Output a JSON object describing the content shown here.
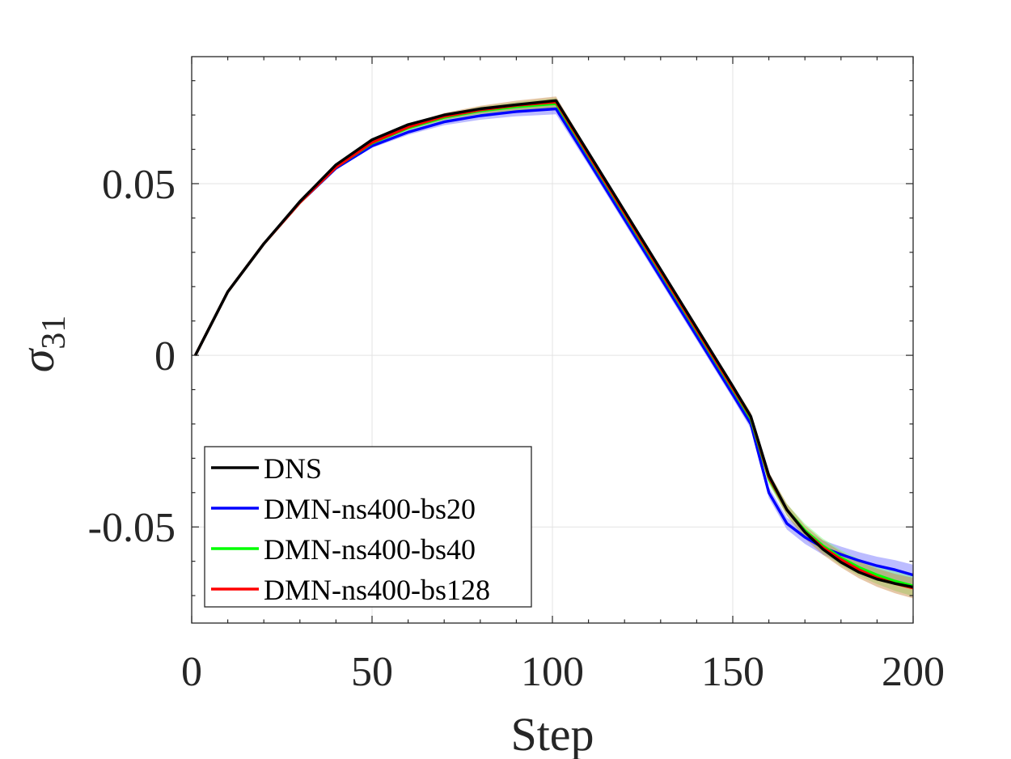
{
  "chart_data": {
    "type": "line",
    "xlabel": "Step",
    "ylabel": "σ",
    "ylabel_subscript": "31",
    "xlim": [
      0,
      200
    ],
    "ylim": [
      -0.078,
      0.087
    ],
    "x_ticks": [
      0,
      50,
      100,
      150,
      200
    ],
    "x_tick_labels": [
      "0",
      "50",
      "100",
      "150",
      "200"
    ],
    "y_ticks": [
      0.05,
      0,
      -0.05
    ],
    "y_tick_labels": [
      "0.05",
      "0",
      "-0.05"
    ],
    "grid": true,
    "legend_position": "bottom-left",
    "series": [
      {
        "name": "DMN-ns400-bs20",
        "color": "#0000ff",
        "band_color": "#6a6aff",
        "x": [
          1,
          10,
          20,
          30,
          40,
          50,
          60,
          70,
          80,
          90,
          101,
          110,
          120,
          130,
          140,
          150,
          155,
          160,
          165,
          170,
          175,
          180,
          185,
          190,
          195,
          200
        ],
        "y": [
          0,
          0.0185,
          0.0325,
          0.0445,
          0.0545,
          0.061,
          0.065,
          0.068,
          0.0698,
          0.071,
          0.0718,
          0.0566,
          0.0396,
          0.0226,
          0.0056,
          -0.0114,
          -0.02,
          -0.04,
          -0.049,
          -0.053,
          -0.056,
          -0.058,
          -0.0598,
          -0.0613,
          -0.0625,
          -0.064
        ]
      },
      {
        "name": "DMN-ns400-bs40",
        "color": "#00ff00",
        "band_color": "#7cff7c",
        "x": [
          1,
          10,
          20,
          30,
          40,
          50,
          60,
          70,
          80,
          90,
          101,
          110,
          120,
          130,
          140,
          150,
          155,
          160,
          165,
          170,
          175,
          180,
          185,
          190,
          195,
          200
        ],
        "y": [
          0,
          0.0185,
          0.0325,
          0.0445,
          0.0548,
          0.0618,
          0.0662,
          0.0693,
          0.0712,
          0.0724,
          0.0733,
          0.058,
          0.041,
          0.024,
          0.007,
          -0.01,
          -0.0185,
          -0.036,
          -0.045,
          -0.051,
          -0.0555,
          -0.059,
          -0.0618,
          -0.064,
          -0.0658,
          -0.0672
        ]
      },
      {
        "name": "DMN-ns400-bs128",
        "color": "#ff0000",
        "band_color": "#c8823c",
        "x": [
          1,
          10,
          20,
          30,
          40,
          50,
          60,
          70,
          80,
          90,
          101,
          110,
          120,
          130,
          140,
          150,
          155,
          160,
          165,
          170,
          175,
          180,
          185,
          190,
          195,
          200
        ],
        "y": [
          0,
          0.0185,
          0.0325,
          0.0445,
          0.0548,
          0.062,
          0.0665,
          0.0696,
          0.0715,
          0.0728,
          0.0738,
          0.0584,
          0.0414,
          0.0244,
          0.0074,
          -0.0096,
          -0.018,
          -0.0355,
          -0.045,
          -0.0515,
          -0.056,
          -0.0595,
          -0.0625,
          -0.0648,
          -0.0665,
          -0.0678
        ]
      },
      {
        "name": "DNS",
        "color": "#000000",
        "x": [
          1,
          10,
          20,
          30,
          40,
          50,
          60,
          70,
          80,
          90,
          101,
          110,
          120,
          130,
          140,
          150,
          155,
          160,
          165,
          170,
          175,
          180,
          185,
          190,
          195,
          200
        ],
        "y": [
          0,
          0.0185,
          0.0325,
          0.0448,
          0.0555,
          0.0628,
          0.0672,
          0.07,
          0.0718,
          0.073,
          0.0742,
          0.059,
          0.042,
          0.025,
          0.008,
          -0.009,
          -0.0178,
          -0.035,
          -0.045,
          -0.0515,
          -0.0565,
          -0.0603,
          -0.0632,
          -0.0652,
          -0.0665,
          -0.0675
        ]
      }
    ],
    "legend": [
      {
        "label": "DNS",
        "color": "#000000"
      },
      {
        "label": "DMN-ns400-bs20",
        "color": "#0000ff"
      },
      {
        "label": "DMN-ns400-bs40",
        "color": "#00ff00"
      },
      {
        "label": "DMN-ns400-bs128",
        "color": "#ff0000"
      }
    ]
  }
}
